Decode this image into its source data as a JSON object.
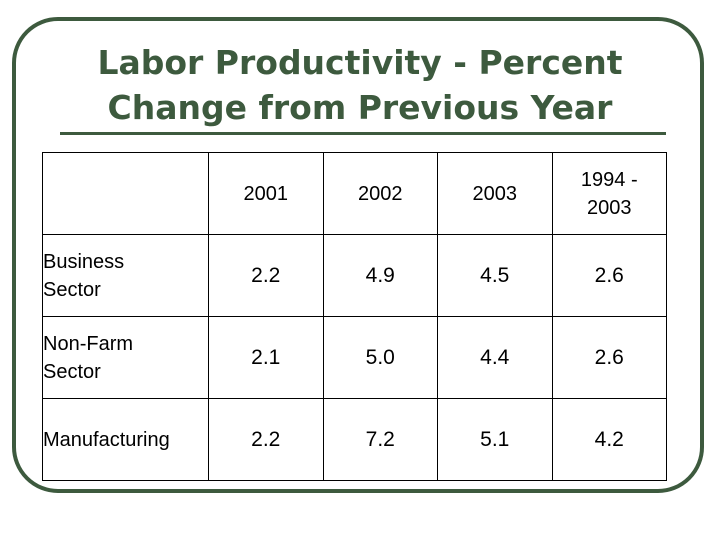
{
  "slide": {
    "title_line1": "Labor Productivity - Percent",
    "title_line2": "Change from Previous Year"
  },
  "table": {
    "columns": [
      "2001",
      "2002",
      "2003",
      "1994 -",
      "2003"
    ],
    "rows": [
      {
        "label_line1": "Business",
        "label_line2": "Sector",
        "values": [
          "2.2",
          "4.9",
          "4.5",
          "2.6"
        ]
      },
      {
        "label_line1": "Non-Farm",
        "label_line2": "Sector",
        "values": [
          "2.1",
          "5.0",
          "4.4",
          "2.6"
        ]
      },
      {
        "label_line1": "Manufacturing",
        "label_line2": "",
        "values": [
          "2.2",
          "7.2",
          "5.1",
          "4.2"
        ]
      }
    ]
  },
  "colors": {
    "accent": "#3d5a3e"
  }
}
